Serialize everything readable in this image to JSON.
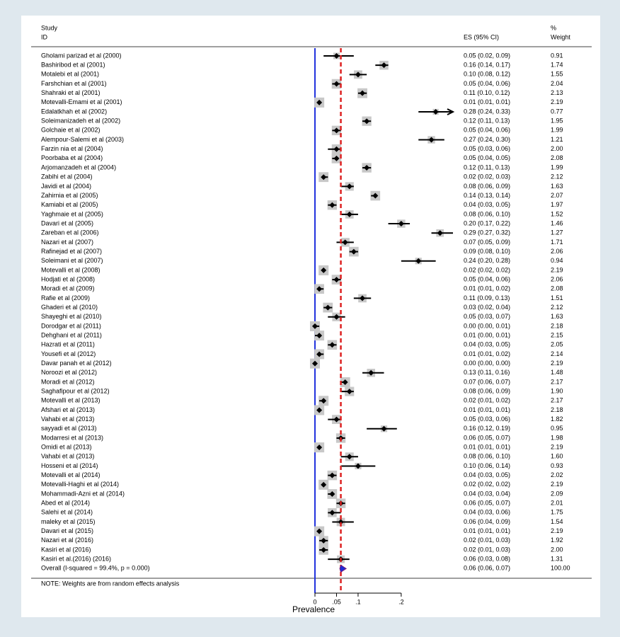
{
  "chart_data": {
    "type": "forest",
    "header": {
      "study": "Study",
      "id": "ID",
      "es": "ES (95% CI)",
      "pct": "%",
      "weight": "Weight"
    },
    "studies": [
      "Gholami parizad et al (2000)",
      "Bashiribod et al (2001)",
      "Motalebi et al (2001)",
      "Farshchian et al (2001)",
      "Shahraki et al (2001)",
      "Motevalli-Emami et al (2001)",
      "Edalatkhah et al (2002)",
      "Soleimanizadeh et al (2002)",
      "Golchaie et al (2002)",
      "Alempour-Salemi et al (2003)",
      "Farzin nia et al (2004)",
      "Poorbaba et al (2004)",
      "Arjomanzadeh et al (2004)",
      "Zabihi et al (2004)",
      "Javidi et al (2004)",
      "Zahirnia et al (2005)",
      "Kamiabi et al (2005)",
      "Yaghmaie et al (2005)",
      "Davari et al (2005)",
      "Zareban et al (2006)",
      "Nazari et al (2007)",
      "Rafinejad et al (2007)",
      "Soleimani et al (2007)",
      "Motevalli et al (2008)",
      "Hodjati et al (2008)",
      "Moradi et al (2009)",
      "Rafie et al (2009)",
      "Ghaderi et al (2010)",
      "Shayeghi et al (2010)",
      "Dorodgar et al (2011)",
      "Dehghani et al (2011)",
      "Hazrati et al (2011)",
      "Yousefi et al (2012)",
      "Davar panah et al (2012)",
      "Noroozi et al (2012)",
      "Moradi et al (2012)",
      "Saghafipour et al (2012)",
      "Motevalli et al (2013)",
      "Afshari et al (2013)",
      "Vahabi et al (2013)",
      "sayyadi et al (2013)",
      "Modarresi et al (2013)",
      "Omidi et al (2013)",
      "Vahabi et al (2013)",
      "Hosseni et al (2014)",
      "Motevalli et al (2014)",
      "Motevalli-Haghi et al (2014)",
      "Mohammadi-Azni et al (2014)",
      "Abed et al (2014)",
      "Salehi et al (2014)",
      "maleky et al (2015)",
      "Davari et al (2015)",
      "Nazari et al (2016)",
      "Kasiri et al (2016)",
      "Kasiri et al.(2016) (2016)"
    ],
    "values": [
      0.05,
      0.16,
      0.1,
      0.05,
      0.11,
      0.01,
      0.28,
      0.12,
      0.05,
      0.27,
      0.05,
      0.05,
      0.12,
      0.02,
      0.08,
      0.14,
      0.04,
      0.08,
      0.2,
      0.29,
      0.07,
      0.09,
      0.24,
      0.02,
      0.05,
      0.01,
      0.11,
      0.03,
      0.05,
      0,
      0.01,
      0.04,
      0.01,
      0,
      0.13,
      0.07,
      0.08,
      0.02,
      0.01,
      0.05,
      0.16,
      0.06,
      0.01,
      0.08,
      0.1,
      0.04,
      0.02,
      0.04,
      0.06,
      0.04,
      0.06,
      0.01,
      0.02,
      0.02,
      0.06
    ],
    "lo": [
      0.02,
      0.14,
      0.08,
      0.04,
      0.1,
      0.01,
      0.24,
      0.11,
      0.04,
      0.24,
      0.03,
      0.04,
      0.11,
      0.02,
      0.06,
      0.13,
      0.03,
      0.06,
      0.17,
      0.27,
      0.05,
      0.08,
      0.2,
      0.02,
      0.04,
      0.01,
      0.09,
      0.02,
      0.03,
      0,
      0,
      0.03,
      0.01,
      0,
      0.11,
      0.06,
      0.06,
      0.01,
      0.01,
      0.03,
      0.12,
      0.05,
      0.01,
      0.06,
      0.06,
      0.03,
      0.02,
      0.03,
      0.05,
      0.03,
      0.04,
      0.01,
      0.01,
      0.01,
      0.03
    ],
    "hi": [
      0.09,
      0.17,
      0.12,
      0.06,
      0.12,
      0.01,
      0.33,
      0.13,
      0.06,
      0.3,
      0.06,
      0.05,
      0.13,
      0.03,
      0.09,
      0.14,
      0.05,
      0.1,
      0.22,
      0.32,
      0.09,
      0.1,
      0.28,
      0.02,
      0.06,
      0.02,
      0.13,
      0.04,
      0.07,
      0.01,
      0.01,
      0.05,
      0.02,
      0,
      0.16,
      0.07,
      0.09,
      0.02,
      0.01,
      0.06,
      0.19,
      0.07,
      0.01,
      0.1,
      0.14,
      0.05,
      0.02,
      0.04,
      0.07,
      0.06,
      0.09,
      0.01,
      0.03,
      0.03,
      0.08
    ],
    "value_labels": [
      "0.05 (0.02, 0.09)",
      "0.16 (0.14, 0.17)",
      "0.10 (0.08, 0.12)",
      "0.05 (0.04, 0.06)",
      "0.11 (0.10, 0.12)",
      "0.01 (0.01, 0.01)",
      "0.28 (0.24, 0.33)",
      "0.12 (0.11, 0.13)",
      "0.05 (0.04, 0.06)",
      "0.27 (0.24, 0.30)",
      "0.05 (0.03, 0.06)",
      "0.05 (0.04, 0.05)",
      "0.12 (0.11, 0.13)",
      "0.02 (0.02, 0.03)",
      "0.08 (0.06, 0.09)",
      "0.14 (0.13, 0.14)",
      "0.04 (0.03, 0.05)",
      "0.08 (0.06, 0.10)",
      "0.20 (0.17, 0.22)",
      "0.29 (0.27, 0.32)",
      "0.07 (0.05, 0.09)",
      "0.09 (0.08, 0.10)",
      "0.24 (0.20, 0.28)",
      "0.02 (0.02, 0.02)",
      "0.05 (0.04, 0.06)",
      "0.01 (0.01, 0.02)",
      "0.11 (0.09, 0.13)",
      "0.03 (0.02, 0.04)",
      "0.05 (0.03, 0.07)",
      "0.00 (0.00, 0.01)",
      "0.01 (0.00, 0.01)",
      "0.04 (0.03, 0.05)",
      "0.01 (0.01, 0.02)",
      "0.00 (0.00, 0.00)",
      "0.13 (0.11, 0.16)",
      "0.07 (0.06, 0.07)",
      "0.08 (0.06, 0.09)",
      "0.02 (0.01, 0.02)",
      "0.01 (0.01, 0.01)",
      "0.05 (0.03, 0.06)",
      "0.16 (0.12, 0.19)",
      "0.06 (0.05, 0.07)",
      "0.01 (0.01, 0.01)",
      "0.08 (0.06, 0.10)",
      "0.10 (0.06, 0.14)",
      "0.04 (0.03, 0.05)",
      "0.02 (0.02, 0.02)",
      "0.04 (0.03, 0.04)",
      "0.06 (0.05, 0.07)",
      "0.04 (0.03, 0.06)",
      "0.06 (0.04, 0.09)",
      "0.01 (0.01, 0.01)",
      "0.02 (0.01, 0.03)",
      "0.02 (0.01, 0.03)",
      "0.06 (0.03, 0.08)"
    ],
    "weights": [
      0.91,
      1.74,
      1.55,
      2.04,
      2.13,
      2.19,
      0.77,
      1.95,
      1.99,
      1.21,
      2,
      2.08,
      1.99,
      2.12,
      1.63,
      2.07,
      1.97,
      1.52,
      1.46,
      1.27,
      1.71,
      2.06,
      0.94,
      2.19,
      2.06,
      2.08,
      1.51,
      2.12,
      1.63,
      2.18,
      2.15,
      2.05,
      2.14,
      2.19,
      1.48,
      2.17,
      1.9,
      2.17,
      2.18,
      1.82,
      0.95,
      1.98,
      2.19,
      1.6,
      0.93,
      2.02,
      2.19,
      2.09,
      2.01,
      1.75,
      1.54,
      2.19,
      1.92,
      2,
      1.31
    ],
    "weight_labels": [
      "0.91",
      "1.74",
      "1.55",
      "2.04",
      "2.13",
      "2.19",
      "0.77",
      "1.95",
      "1.99",
      "1.21",
      "2.00",
      "2.08",
      "1.99",
      "2.12",
      "1.63",
      "2.07",
      "1.97",
      "1.52",
      "1.46",
      "1.27",
      "1.71",
      "2.06",
      "0.94",
      "2.19",
      "2.06",
      "2.08",
      "1.51",
      "2.12",
      "1.63",
      "2.18",
      "2.15",
      "2.05",
      "2.14",
      "2.19",
      "1.48",
      "2.17",
      "1.90",
      "2.17",
      "2.18",
      "1.82",
      "0.95",
      "1.98",
      "2.19",
      "1.60",
      "0.93",
      "2.02",
      "2.19",
      "2.09",
      "2.01",
      "1.75",
      "1.54",
      "2.19",
      "1.92",
      "2.00",
      "1.31"
    ],
    "overall": {
      "label": "Overall  (I-squared = 99.4%, p = 0.000)",
      "value": 0.06,
      "lo": 0.06,
      "hi": 0.07,
      "value_label": "0.06 (0.06, 0.07)",
      "weight": 100,
      "weight_label": "100.00"
    },
    "note": "NOTE: Weights are from random effects analysis",
    "xlabel": "Prevalence",
    "xlim": [
      0,
      0.32
    ],
    "xticks": [
      0,
      {
        "value": 0.05,
        "label": ".05"
      },
      {
        "value": 0.1,
        "label": ".1"
      },
      {
        "value": 0.2,
        "label": ".2"
      }
    ],
    "colors": {
      "null_line": "#2233dd",
      "overall_line": "#dd2222",
      "box": "#c8c8c8",
      "point": "#000000",
      "overall_fill": "#1a2bd6",
      "overall_edge": "#7a1e7a"
    }
  }
}
